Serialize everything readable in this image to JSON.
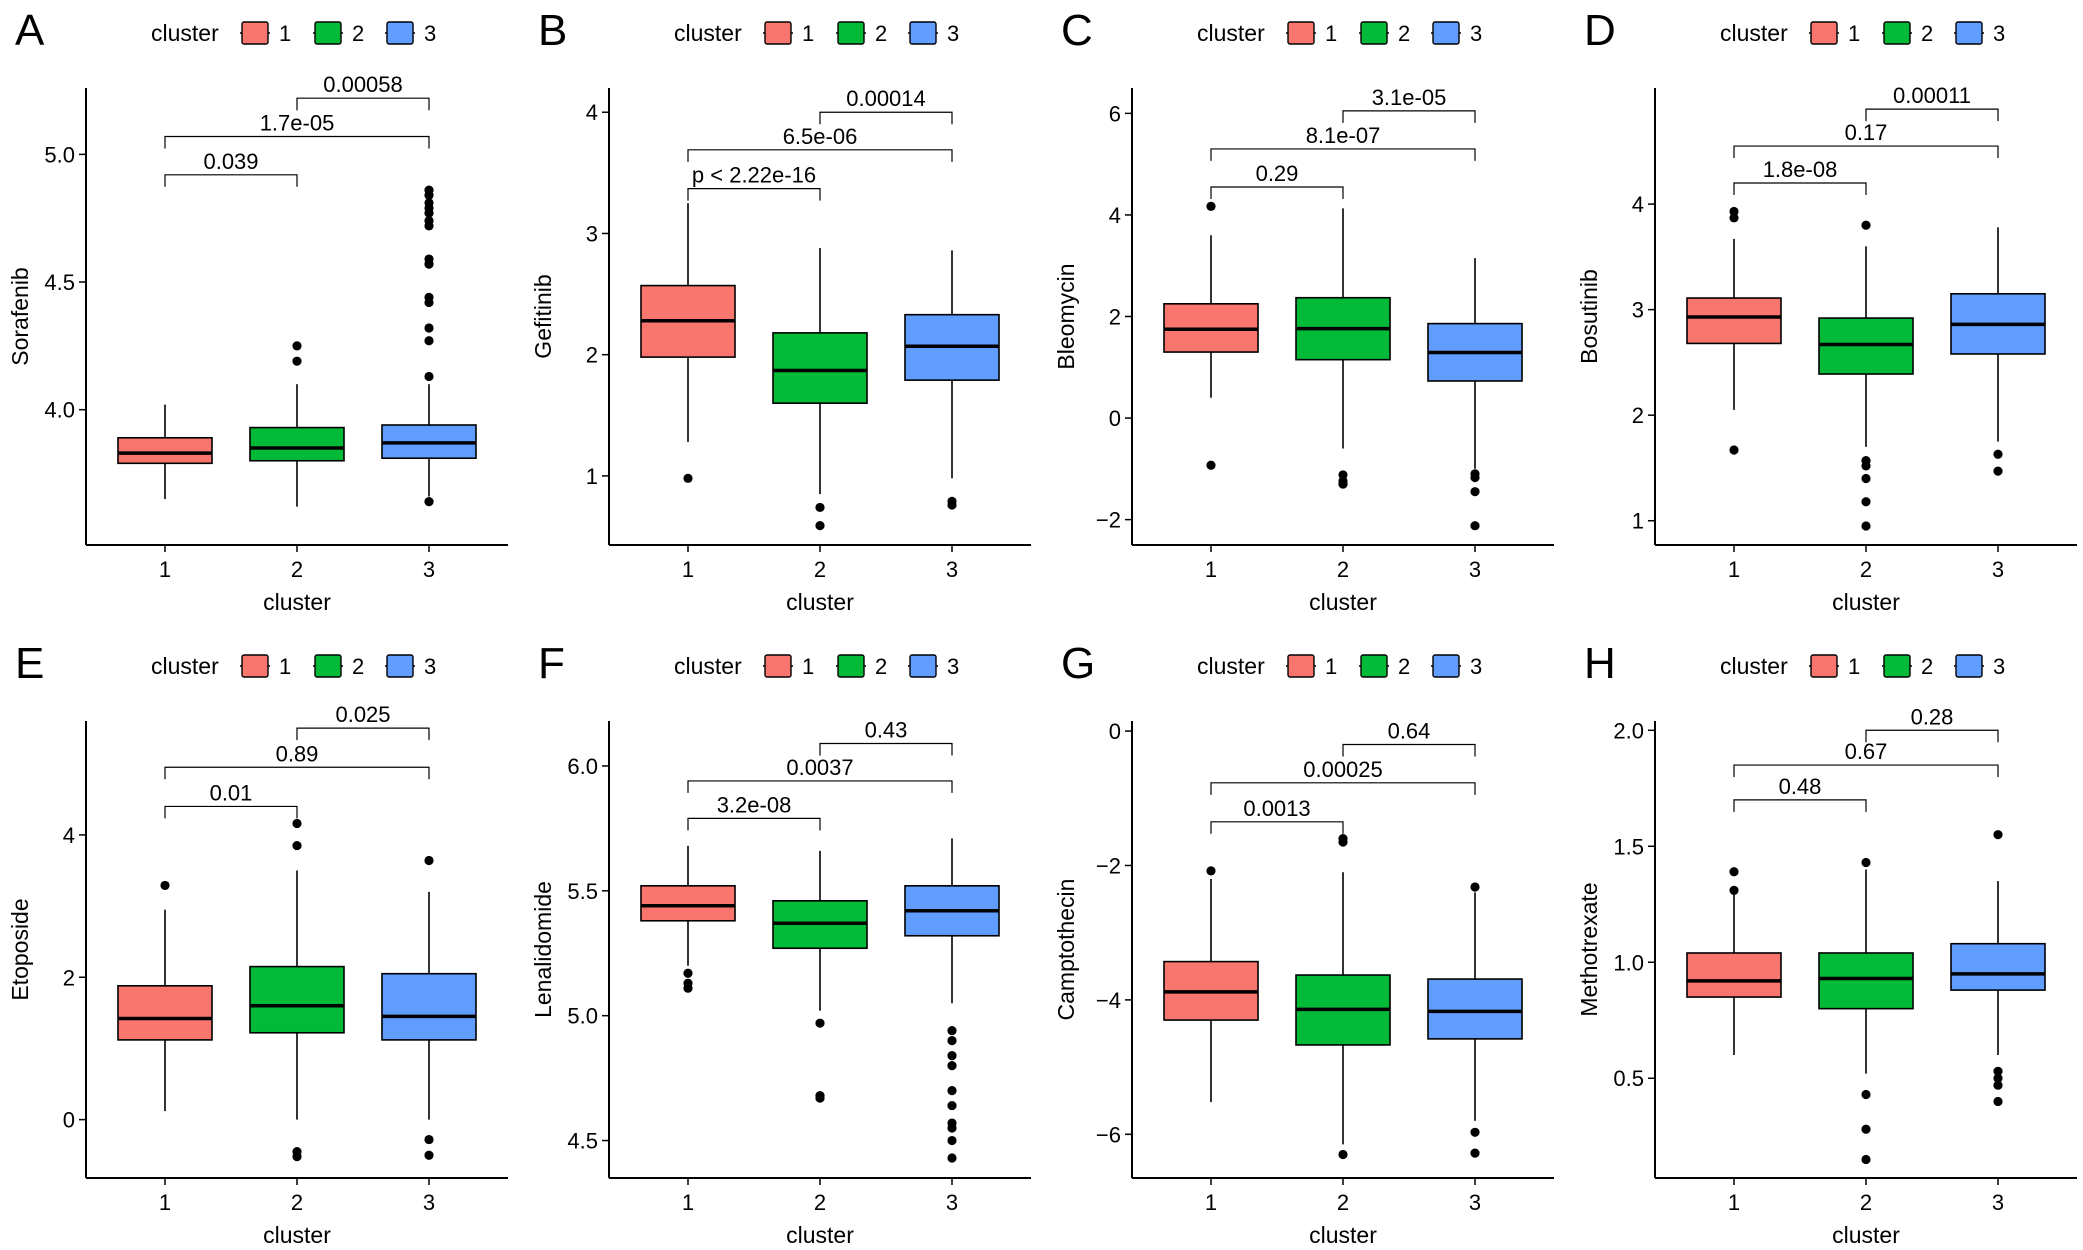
{
  "legend_title": "cluster",
  "cluster_colors": [
    "#F8766D",
    "#00BA38",
    "#619CFF"
  ],
  "chart_data": [
    {
      "panel": "A",
      "type": "box",
      "title": "",
      "xlabel": "cluster",
      "ylabel": "Sorafenib",
      "categories": [
        "1",
        "2",
        "3"
      ],
      "legend": [
        "1",
        "2",
        "3"
      ],
      "ylim": [
        3.47,
        5.26
      ],
      "yticks": [
        4.0,
        4.5,
        5.0
      ],
      "ytick_labels": [
        "4.0",
        "4.5",
        "5.0"
      ],
      "boxes": [
        {
          "cluster": "1",
          "min": 3.65,
          "q1": 3.79,
          "median": 3.83,
          "q3": 3.89,
          "max": 4.02,
          "outliers": []
        },
        {
          "cluster": "2",
          "min": 3.62,
          "q1": 3.8,
          "median": 3.85,
          "q3": 3.93,
          "max": 4.1,
          "outliers": [
            4.19,
            4.25
          ]
        },
        {
          "cluster": "3",
          "min": 3.66,
          "q1": 3.81,
          "median": 3.87,
          "q3": 3.94,
          "max": 4.1,
          "outliers": [
            3.64,
            4.13,
            4.27,
            4.32,
            4.42,
            4.44,
            4.57,
            4.59,
            4.72,
            4.74,
            4.77,
            4.79,
            4.81,
            4.84,
            4.86
          ]
        }
      ],
      "comparisons": [
        {
          "groups": [
            "1",
            "2"
          ],
          "label": "0.039",
          "y": 4.92
        },
        {
          "groups": [
            "1",
            "3"
          ],
          "label": "1.7e-05",
          "y": 5.07
        },
        {
          "groups": [
            "2",
            "3"
          ],
          "label": "0.00058",
          "y": 5.22
        }
      ]
    },
    {
      "panel": "B",
      "type": "box",
      "title": "",
      "xlabel": "cluster",
      "ylabel": "Gefitinib",
      "categories": [
        "1",
        "2",
        "3"
      ],
      "legend": [
        "1",
        "2",
        "3"
      ],
      "ylim": [
        0.43,
        4.2
      ],
      "yticks": [
        1,
        2,
        3,
        4
      ],
      "ytick_labels": [
        "1",
        "2",
        "3",
        "4"
      ],
      "boxes": [
        {
          "cluster": "1",
          "min": 1.28,
          "q1": 1.98,
          "median": 2.28,
          "q3": 2.57,
          "max": 3.25,
          "outliers": [
            0.98
          ]
        },
        {
          "cluster": "2",
          "min": 0.85,
          "q1": 1.6,
          "median": 1.87,
          "q3": 2.18,
          "max": 2.88,
          "outliers": [
            0.59,
            0.74
          ]
        },
        {
          "cluster": "3",
          "min": 0.98,
          "q1": 1.79,
          "median": 2.07,
          "q3": 2.33,
          "max": 2.86,
          "outliers": [
            0.76,
            0.79
          ]
        }
      ],
      "comparisons": [
        {
          "groups": [
            "1",
            "2"
          ],
          "label": "p < 2.22e-16",
          "y": 3.37
        },
        {
          "groups": [
            "1",
            "3"
          ],
          "label": "6.5e-06",
          "y": 3.69
        },
        {
          "groups": [
            "2",
            "3"
          ],
          "label": "0.00014",
          "y": 4.0
        }
      ]
    },
    {
      "panel": "C",
      "type": "box",
      "title": "",
      "xlabel": "cluster",
      "ylabel": "Bleomycin",
      "categories": [
        "1",
        "2",
        "3"
      ],
      "legend": [
        "1",
        "2",
        "3"
      ],
      "ylim": [
        -2.5,
        6.5
      ],
      "yticks": [
        -2,
        0,
        2,
        4,
        6
      ],
      "ytick_labels": [
        "−2",
        "0",
        "2",
        "4",
        "6"
      ],
      "boxes": [
        {
          "cluster": "1",
          "min": 0.4,
          "q1": 1.3,
          "median": 1.75,
          "q3": 2.25,
          "max": 3.6,
          "outliers": [
            -0.93,
            4.17
          ]
        },
        {
          "cluster": "2",
          "min": -0.6,
          "q1": 1.15,
          "median": 1.76,
          "q3": 2.37,
          "max": 4.13,
          "outliers": [
            -1.12,
            -1.24,
            -1.3
          ]
        },
        {
          "cluster": "3",
          "min": -1.0,
          "q1": 0.73,
          "median": 1.29,
          "q3": 1.86,
          "max": 3.15,
          "outliers": [
            -1.1,
            -1.17,
            -1.45,
            -2.12
          ]
        }
      ],
      "comparisons": [
        {
          "groups": [
            "1",
            "2"
          ],
          "label": "0.29",
          "y": 4.55
        },
        {
          "groups": [
            "1",
            "3"
          ],
          "label": "8.1e-07",
          "y": 5.3
        },
        {
          "groups": [
            "2",
            "3"
          ],
          "label": "3.1e-05",
          "y": 6.05
        }
      ]
    },
    {
      "panel": "D",
      "type": "box",
      "title": "",
      "xlabel": "cluster",
      "ylabel": "Bosutinib",
      "categories": [
        "1",
        "2",
        "3"
      ],
      "legend": [
        "1",
        "2",
        "3"
      ],
      "ylim": [
        0.77,
        5.1
      ],
      "yticks": [
        1,
        2,
        3,
        4
      ],
      "ytick_labels": [
        "1",
        "2",
        "3",
        "4"
      ],
      "boxes": [
        {
          "cluster": "1",
          "min": 2.05,
          "q1": 2.68,
          "median": 2.93,
          "q3": 3.11,
          "max": 3.67,
          "outliers": [
            1.67,
            3.87,
            3.93
          ]
        },
        {
          "cluster": "2",
          "min": 1.7,
          "q1": 2.39,
          "median": 2.67,
          "q3": 2.92,
          "max": 3.6,
          "outliers": [
            0.95,
            1.18,
            1.4,
            1.52,
            1.57,
            3.8
          ]
        },
        {
          "cluster": "3",
          "min": 1.75,
          "q1": 2.58,
          "median": 2.86,
          "q3": 3.15,
          "max": 3.78,
          "outliers": [
            1.47,
            1.63
          ]
        }
      ],
      "comparisons": [
        {
          "groups": [
            "1",
            "2"
          ],
          "label": "1.8e-08",
          "y": 4.2
        },
        {
          "groups": [
            "1",
            "3"
          ],
          "label": "0.17",
          "y": 4.55
        },
        {
          "groups": [
            "2",
            "3"
          ],
          "label": "0.00011",
          "y": 4.9
        }
      ]
    },
    {
      "panel": "E",
      "type": "box",
      "title": "",
      "xlabel": "cluster",
      "ylabel": "Etoposide",
      "categories": [
        "1",
        "2",
        "3"
      ],
      "legend": [
        "1",
        "2",
        "3"
      ],
      "ylim": [
        -0.82,
        5.6
      ],
      "yticks": [
        0,
        2,
        4
      ],
      "ytick_labels": [
        "0",
        "2",
        "4"
      ],
      "boxes": [
        {
          "cluster": "1",
          "min": 0.12,
          "q1": 1.12,
          "median": 1.42,
          "q3": 1.88,
          "max": 2.95,
          "outliers": [
            3.29
          ]
        },
        {
          "cluster": "2",
          "min": 0.0,
          "q1": 1.22,
          "median": 1.6,
          "q3": 2.15,
          "max": 3.5,
          "outliers": [
            -0.45,
            -0.52,
            3.85,
            4.16
          ]
        },
        {
          "cluster": "3",
          "min": 0.0,
          "q1": 1.12,
          "median": 1.45,
          "q3": 2.05,
          "max": 3.2,
          "outliers": [
            -0.28,
            -0.5,
            3.64
          ]
        }
      ],
      "comparisons": [
        {
          "groups": [
            "1",
            "2"
          ],
          "label": "0.01",
          "y": 4.4
        },
        {
          "groups": [
            "1",
            "3"
          ],
          "label": "0.89",
          "y": 4.95
        },
        {
          "groups": [
            "2",
            "3"
          ],
          "label": "0.025",
          "y": 5.5
        }
      ]
    },
    {
      "panel": "F",
      "type": "box",
      "title": "",
      "xlabel": "cluster",
      "ylabel": "Lenalidomide",
      "categories": [
        "1",
        "2",
        "3"
      ],
      "legend": [
        "1",
        "2",
        "3"
      ],
      "ylim": [
        4.35,
        6.18
      ],
      "yticks": [
        4.5,
        5.0,
        5.5,
        6.0
      ],
      "ytick_labels": [
        "4.5",
        "5.0",
        "5.5",
        "6.0"
      ],
      "boxes": [
        {
          "cluster": "1",
          "min": 5.2,
          "q1": 5.38,
          "median": 5.44,
          "q3": 5.52,
          "max": 5.68,
          "outliers": [
            5.11,
            5.13,
            5.17
          ]
        },
        {
          "cluster": "2",
          "min": 5.02,
          "q1": 5.27,
          "median": 5.37,
          "q3": 5.46,
          "max": 5.66,
          "outliers": [
            4.67,
            4.68,
            4.97
          ]
        },
        {
          "cluster": "3",
          "min": 5.05,
          "q1": 5.32,
          "median": 5.42,
          "q3": 5.52,
          "max": 5.71,
          "outliers": [
            4.43,
            4.5,
            4.55,
            4.57,
            4.64,
            4.7,
            4.8,
            4.84,
            4.9,
            4.94
          ]
        }
      ],
      "comparisons": [
        {
          "groups": [
            "1",
            "2"
          ],
          "label": "3.2e-08",
          "y": 5.79
        },
        {
          "groups": [
            "1",
            "3"
          ],
          "label": "0.0037",
          "y": 5.94
        },
        {
          "groups": [
            "2",
            "3"
          ],
          "label": "0.43",
          "y": 6.09
        }
      ]
    },
    {
      "panel": "G",
      "type": "box",
      "title": "",
      "xlabel": "cluster",
      "ylabel": "Camptothecin",
      "categories": [
        "1",
        "2",
        "3"
      ],
      "legend": [
        "1",
        "2",
        "3"
      ],
      "ylim": [
        -6.65,
        0.15
      ],
      "yticks": [
        -6,
        -4,
        -2,
        0
      ],
      "ytick_labels": [
        "−6",
        "−4",
        "−2",
        "0"
      ],
      "boxes": [
        {
          "cluster": "1",
          "min": -5.52,
          "q1": -4.3,
          "median": -3.88,
          "q3": -3.43,
          "max": -2.2,
          "outliers": [
            -2.08
          ]
        },
        {
          "cluster": "2",
          "min": -6.15,
          "q1": -4.67,
          "median": -4.14,
          "q3": -3.63,
          "max": -2.1,
          "outliers": [
            -6.3,
            -1.65,
            -1.6
          ]
        },
        {
          "cluster": "3",
          "min": -5.8,
          "q1": -4.58,
          "median": -4.17,
          "q3": -3.69,
          "max": -2.4,
          "outliers": [
            -6.28,
            -5.97,
            -2.32
          ]
        }
      ],
      "comparisons": [
        {
          "groups": [
            "1",
            "2"
          ],
          "label": "0.0013",
          "y": -1.35
        },
        {
          "groups": [
            "1",
            "3"
          ],
          "label": "0.00025",
          "y": -0.77
        },
        {
          "groups": [
            "2",
            "3"
          ],
          "label": "0.64",
          "y": -0.2
        }
      ]
    },
    {
      "panel": "H",
      "type": "box",
      "title": "",
      "xlabel": "cluster",
      "ylabel": "Methotrexate",
      "categories": [
        "1",
        "2",
        "3"
      ],
      "legend": [
        "1",
        "2",
        "3"
      ],
      "ylim": [
        0.07,
        2.04
      ],
      "yticks": [
        0.5,
        1.0,
        1.5,
        2.0
      ],
      "ytick_labels": [
        "0.5",
        "1.0",
        "1.5",
        "2.0"
      ],
      "boxes": [
        {
          "cluster": "1",
          "min": 0.6,
          "q1": 0.85,
          "median": 0.92,
          "q3": 1.04,
          "max": 1.3,
          "outliers": [
            1.31,
            1.39
          ]
        },
        {
          "cluster": "2",
          "min": 0.52,
          "q1": 0.8,
          "median": 0.93,
          "q3": 1.04,
          "max": 1.4,
          "outliers": [
            0.15,
            0.28,
            0.43,
            1.43
          ]
        },
        {
          "cluster": "3",
          "min": 0.6,
          "q1": 0.88,
          "median": 0.95,
          "q3": 1.08,
          "max": 1.35,
          "outliers": [
            0.4,
            0.47,
            0.5,
            0.53,
            1.55
          ]
        }
      ],
      "comparisons": [
        {
          "groups": [
            "1",
            "2"
          ],
          "label": "0.48",
          "y": 1.7
        },
        {
          "groups": [
            "1",
            "3"
          ],
          "label": "0.67",
          "y": 1.85
        },
        {
          "groups": [
            "2",
            "3"
          ],
          "label": "0.28",
          "y": 2.0
        }
      ]
    }
  ]
}
